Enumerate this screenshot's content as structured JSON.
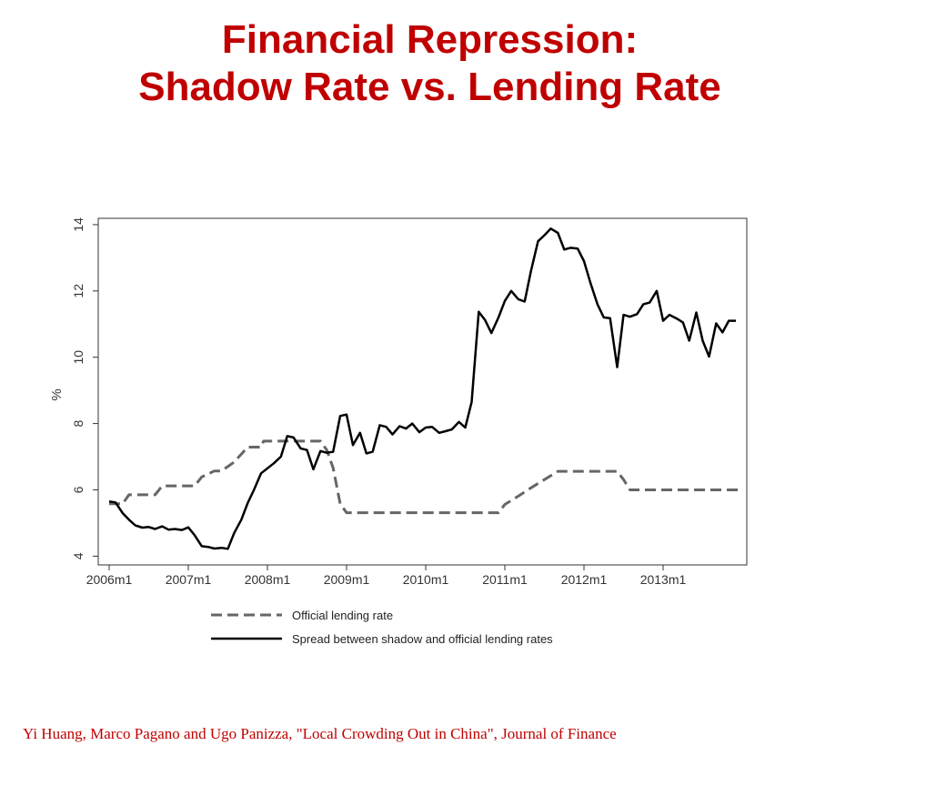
{
  "slide": {
    "title_line1": "Financial Repression:",
    "title_line2": "Shadow Rate vs. Lending Rate",
    "citation": "Yi Huang, Marco Pagano and Ugo Panizza, \"Local Crowding Out in China\", Journal of Finance"
  },
  "colors": {
    "title": "#c00000",
    "spread_line": "#000000",
    "lending_line": "#666666"
  },
  "chart_data": {
    "type": "line",
    "xlabel": "",
    "ylabel": "%",
    "xlim": [
      2006.0,
      2014.0
    ],
    "ylim": [
      3.9,
      14.3
    ],
    "x_ticks": [
      {
        "value": 2006.0,
        "label": "2006m1"
      },
      {
        "value": 2007.0,
        "label": "2007m1"
      },
      {
        "value": 2008.0,
        "label": "2008m1"
      },
      {
        "value": 2009.0,
        "label": "2009m1"
      },
      {
        "value": 2010.0,
        "label": "2010m1"
      },
      {
        "value": 2011.0,
        "label": "2011m1"
      },
      {
        "value": 2012.0,
        "label": "2012m1"
      },
      {
        "value": 2013.0,
        "label": "2013m1"
      }
    ],
    "y_ticks": [
      {
        "value": 4,
        "label": "4"
      },
      {
        "value": 6,
        "label": "6"
      },
      {
        "value": 8,
        "label": "8"
      },
      {
        "value": 10,
        "label": "10"
      },
      {
        "value": 12,
        "label": "12"
      },
      {
        "value": 14,
        "label": "14"
      }
    ],
    "grid": false,
    "legend_position": "bottom",
    "series": [
      {
        "name": "Official lending rate",
        "style": "dashed",
        "points": [
          [
            2006.0,
            5.58
          ],
          [
            2006.17,
            5.58
          ],
          [
            2006.25,
            5.85
          ],
          [
            2006.58,
            5.85
          ],
          [
            2006.67,
            6.12
          ],
          [
            2007.08,
            6.12
          ],
          [
            2007.17,
            6.39
          ],
          [
            2007.33,
            6.57
          ],
          [
            2007.42,
            6.57
          ],
          [
            2007.58,
            6.84
          ],
          [
            2007.75,
            7.29
          ],
          [
            2007.92,
            7.29
          ],
          [
            2007.95,
            7.47
          ],
          [
            2008.67,
            7.47
          ],
          [
            2008.75,
            7.2
          ],
          [
            2008.83,
            6.66
          ],
          [
            2008.92,
            5.58
          ],
          [
            2009.0,
            5.31
          ],
          [
            2010.92,
            5.31
          ],
          [
            2011.0,
            5.56
          ],
          [
            2011.17,
            5.81
          ],
          [
            2011.33,
            6.06
          ],
          [
            2011.5,
            6.31
          ],
          [
            2011.67,
            6.56
          ],
          [
            2012.42,
            6.56
          ],
          [
            2012.5,
            6.31
          ],
          [
            2012.58,
            6.0
          ],
          [
            2014.0,
            6.0
          ]
        ]
      },
      {
        "name": "Spread between shadow and official lending rates",
        "style": "solid",
        "points": [
          [
            2006.0,
            5.65
          ],
          [
            2006.08,
            5.62
          ],
          [
            2006.17,
            5.3
          ],
          [
            2006.25,
            5.1
          ],
          [
            2006.33,
            4.93
          ],
          [
            2006.42,
            4.86
          ],
          [
            2006.5,
            4.88
          ],
          [
            2006.58,
            4.82
          ],
          [
            2006.67,
            4.9
          ],
          [
            2006.75,
            4.8
          ],
          [
            2006.83,
            4.82
          ],
          [
            2006.92,
            4.79
          ],
          [
            2007.0,
            4.87
          ],
          [
            2007.08,
            4.63
          ],
          [
            2007.17,
            4.3
          ],
          [
            2007.25,
            4.28
          ],
          [
            2007.33,
            4.23
          ],
          [
            2007.42,
            4.25
          ],
          [
            2007.5,
            4.22
          ],
          [
            2007.58,
            4.7
          ],
          [
            2007.67,
            5.1
          ],
          [
            2007.75,
            5.6
          ],
          [
            2007.83,
            6.0
          ],
          [
            2007.92,
            6.5
          ],
          [
            2008.0,
            6.65
          ],
          [
            2008.08,
            6.8
          ],
          [
            2008.17,
            7.0
          ],
          [
            2008.25,
            7.62
          ],
          [
            2008.33,
            7.58
          ],
          [
            2008.42,
            7.25
          ],
          [
            2008.5,
            7.2
          ],
          [
            2008.58,
            6.62
          ],
          [
            2008.67,
            7.17
          ],
          [
            2008.75,
            7.12
          ],
          [
            2008.83,
            7.15
          ],
          [
            2008.92,
            8.23
          ],
          [
            2009.0,
            8.27
          ],
          [
            2009.08,
            7.35
          ],
          [
            2009.17,
            7.72
          ],
          [
            2009.25,
            7.1
          ],
          [
            2009.33,
            7.15
          ],
          [
            2009.42,
            7.95
          ],
          [
            2009.5,
            7.9
          ],
          [
            2009.58,
            7.67
          ],
          [
            2009.67,
            7.92
          ],
          [
            2009.75,
            7.85
          ],
          [
            2009.83,
            8.0
          ],
          [
            2009.92,
            7.74
          ],
          [
            2010.0,
            7.88
          ],
          [
            2010.08,
            7.9
          ],
          [
            2010.17,
            7.72
          ],
          [
            2010.25,
            7.77
          ],
          [
            2010.33,
            7.82
          ],
          [
            2010.42,
            8.05
          ],
          [
            2010.5,
            7.88
          ],
          [
            2010.58,
            8.65
          ],
          [
            2010.67,
            11.37
          ],
          [
            2010.75,
            11.12
          ],
          [
            2010.83,
            10.73
          ],
          [
            2010.92,
            11.2
          ],
          [
            2011.0,
            11.7
          ],
          [
            2011.08,
            12.0
          ],
          [
            2011.17,
            11.75
          ],
          [
            2011.25,
            11.68
          ],
          [
            2011.33,
            12.6
          ],
          [
            2011.42,
            13.5
          ],
          [
            2011.5,
            13.68
          ],
          [
            2011.58,
            13.88
          ],
          [
            2011.67,
            13.75
          ],
          [
            2011.75,
            13.25
          ],
          [
            2011.83,
            13.3
          ],
          [
            2011.92,
            13.28
          ],
          [
            2012.0,
            12.9
          ],
          [
            2012.08,
            12.25
          ],
          [
            2012.17,
            11.6
          ],
          [
            2012.25,
            11.2
          ],
          [
            2012.33,
            11.18
          ],
          [
            2012.42,
            9.7
          ],
          [
            2012.5,
            11.28
          ],
          [
            2012.58,
            11.22
          ],
          [
            2012.67,
            11.3
          ],
          [
            2012.75,
            11.6
          ],
          [
            2012.83,
            11.65
          ],
          [
            2012.92,
            12.0
          ],
          [
            2013.0,
            11.1
          ],
          [
            2013.08,
            11.28
          ],
          [
            2013.17,
            11.17
          ],
          [
            2013.25,
            11.05
          ],
          [
            2013.33,
            10.5
          ],
          [
            2013.42,
            11.35
          ],
          [
            2013.5,
            10.5
          ],
          [
            2013.58,
            10.02
          ],
          [
            2013.67,
            11.02
          ],
          [
            2013.75,
            10.75
          ],
          [
            2013.83,
            11.1
          ],
          [
            2013.92,
            11.1
          ]
        ]
      }
    ]
  }
}
